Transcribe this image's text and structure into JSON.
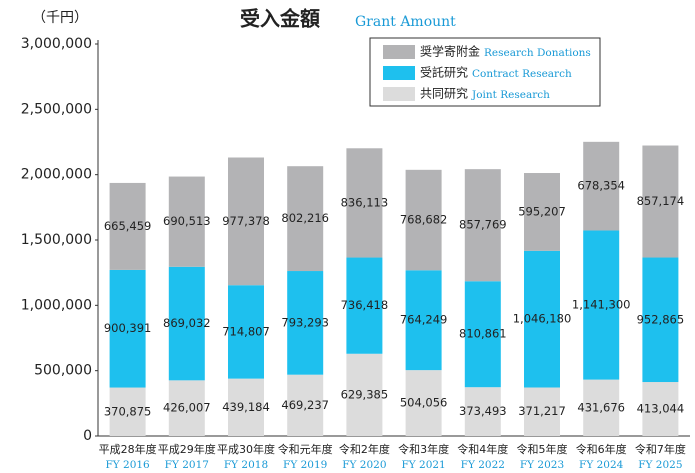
{
  "chart_data": {
    "type": "stacked-bar",
    "title": "受入金額",
    "subtitle": "Grant Amount",
    "unit_label": "（千円）",
    "categories": [
      "平成28年度",
      "平成29年度",
      "平成30年度",
      "令和元年度",
      "令和2年度",
      "令和3年度",
      "令和4年度",
      "令和5年度",
      "令和6年度",
      "令和7年度"
    ],
    "categories_en": [
      "FY 2016",
      "FY 2017",
      "FY 2018",
      "FY 2019",
      "FY 2020",
      "FY 2021",
      "FY 2022",
      "FY 2023",
      "FY 2024",
      "FY 2025"
    ],
    "series": [
      {
        "name": "共同研究",
        "name_en": "Joint Research",
        "color": "#dcdcdc",
        "values": [
          370875,
          426007,
          439184,
          469237,
          629385,
          504056,
          373493,
          371217,
          431676,
          413044
        ],
        "value_labels": [
          "370,875",
          "426,007",
          "439,184",
          "469,237",
          "629,385",
          "504,056",
          "373,493",
          "371,217",
          "431,676",
          "413,044"
        ]
      },
      {
        "name": "受託研究",
        "name_en": "Contract Research",
        "color": "#1ec0ee",
        "values": [
          900391,
          869032,
          714807,
          793293,
          736418,
          764249,
          810861,
          1046180,
          1141300,
          952865
        ],
        "value_labels": [
          "900,391",
          "869,032",
          "714,807",
          "793,293",
          "736,418",
          "764,249",
          "810,861",
          "1,046,180",
          "1,141,300",
          "952,865"
        ]
      },
      {
        "name": "奨学寄附金",
        "name_en": "Research Donations",
        "color": "#b3b3b5",
        "values": [
          665459,
          690513,
          977378,
          802216,
          836113,
          768682,
          857769,
          595207,
          678354,
          857174
        ],
        "value_labels": [
          "665,459",
          "690,513",
          "977,378",
          "802,216",
          "836,113",
          "768,682",
          "857,769",
          "595,207",
          "678,354",
          "857,174"
        ]
      }
    ],
    "ylim": [
      0,
      3000000
    ],
    "yticks": [
      0,
      {
        "value": 500000,
        "label": "500,000"
      },
      {
        "value": 1000000,
        "label": "1,000,000"
      },
      {
        "value": 1500000,
        "label": "1,500,000"
      },
      {
        "value": 2000000,
        "label": "2,000,000"
      },
      {
        "value": 2500000,
        "label": "2,500,000"
      },
      {
        "value": 3000000,
        "label": "3,000,000"
      }
    ],
    "legend": "top-right"
  }
}
